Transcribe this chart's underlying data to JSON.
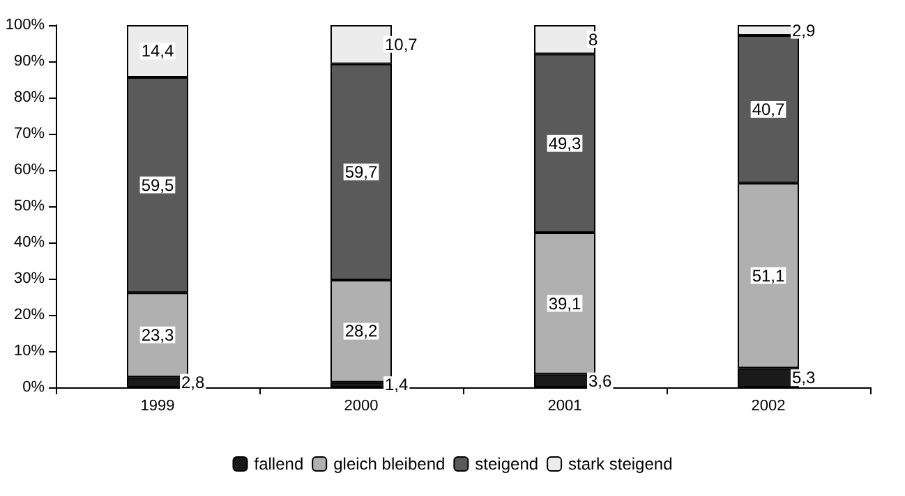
{
  "chart_data": {
    "type": "bar",
    "stacked": true,
    "categories": [
      "1999",
      "2000",
      "2001",
      "2002"
    ],
    "series": [
      {
        "name": "fallend",
        "color": "#1a1a1a",
        "values": [
          2.8,
          1.4,
          3.6,
          5.3
        ],
        "value_labels": [
          "2,8",
          "1,4",
          "3,6",
          "5,3"
        ]
      },
      {
        "name": "gleich bleibend",
        "color": "#b0b0b0",
        "values": [
          23.3,
          28.2,
          39.1,
          51.1
        ],
        "value_labels": [
          "23,3",
          "28,2",
          "39,1",
          "51,1"
        ]
      },
      {
        "name": "steigend",
        "color": "#5a5a5a",
        "values": [
          59.5,
          59.7,
          49.3,
          40.7
        ],
        "value_labels": [
          "59,5",
          "59,7",
          "49,3",
          "40,7"
        ]
      },
      {
        "name": "stark steigend",
        "color": "#ececec",
        "values": [
          14.4,
          10.7,
          8,
          2.9
        ],
        "value_labels": [
          "14,4",
          "10,7",
          "8",
          "2,9"
        ]
      }
    ],
    "ylim": [
      0,
      100
    ],
    "yticks": [
      {
        "value": 0,
        "label": "0%"
      },
      {
        "value": 10,
        "label": "10%"
      },
      {
        "value": 20,
        "label": "20%"
      },
      {
        "value": 30,
        "label": "30%"
      },
      {
        "value": 40,
        "label": "40%"
      },
      {
        "value": 50,
        "label": "50%"
      },
      {
        "value": 60,
        "label": "60%"
      },
      {
        "value": 70,
        "label": "70%"
      },
      {
        "value": 80,
        "label": "80%"
      },
      {
        "value": 90,
        "label": "90%"
      },
      {
        "value": 100,
        "label": "100%"
      }
    ],
    "grid": false,
    "legend": "bottom"
  }
}
